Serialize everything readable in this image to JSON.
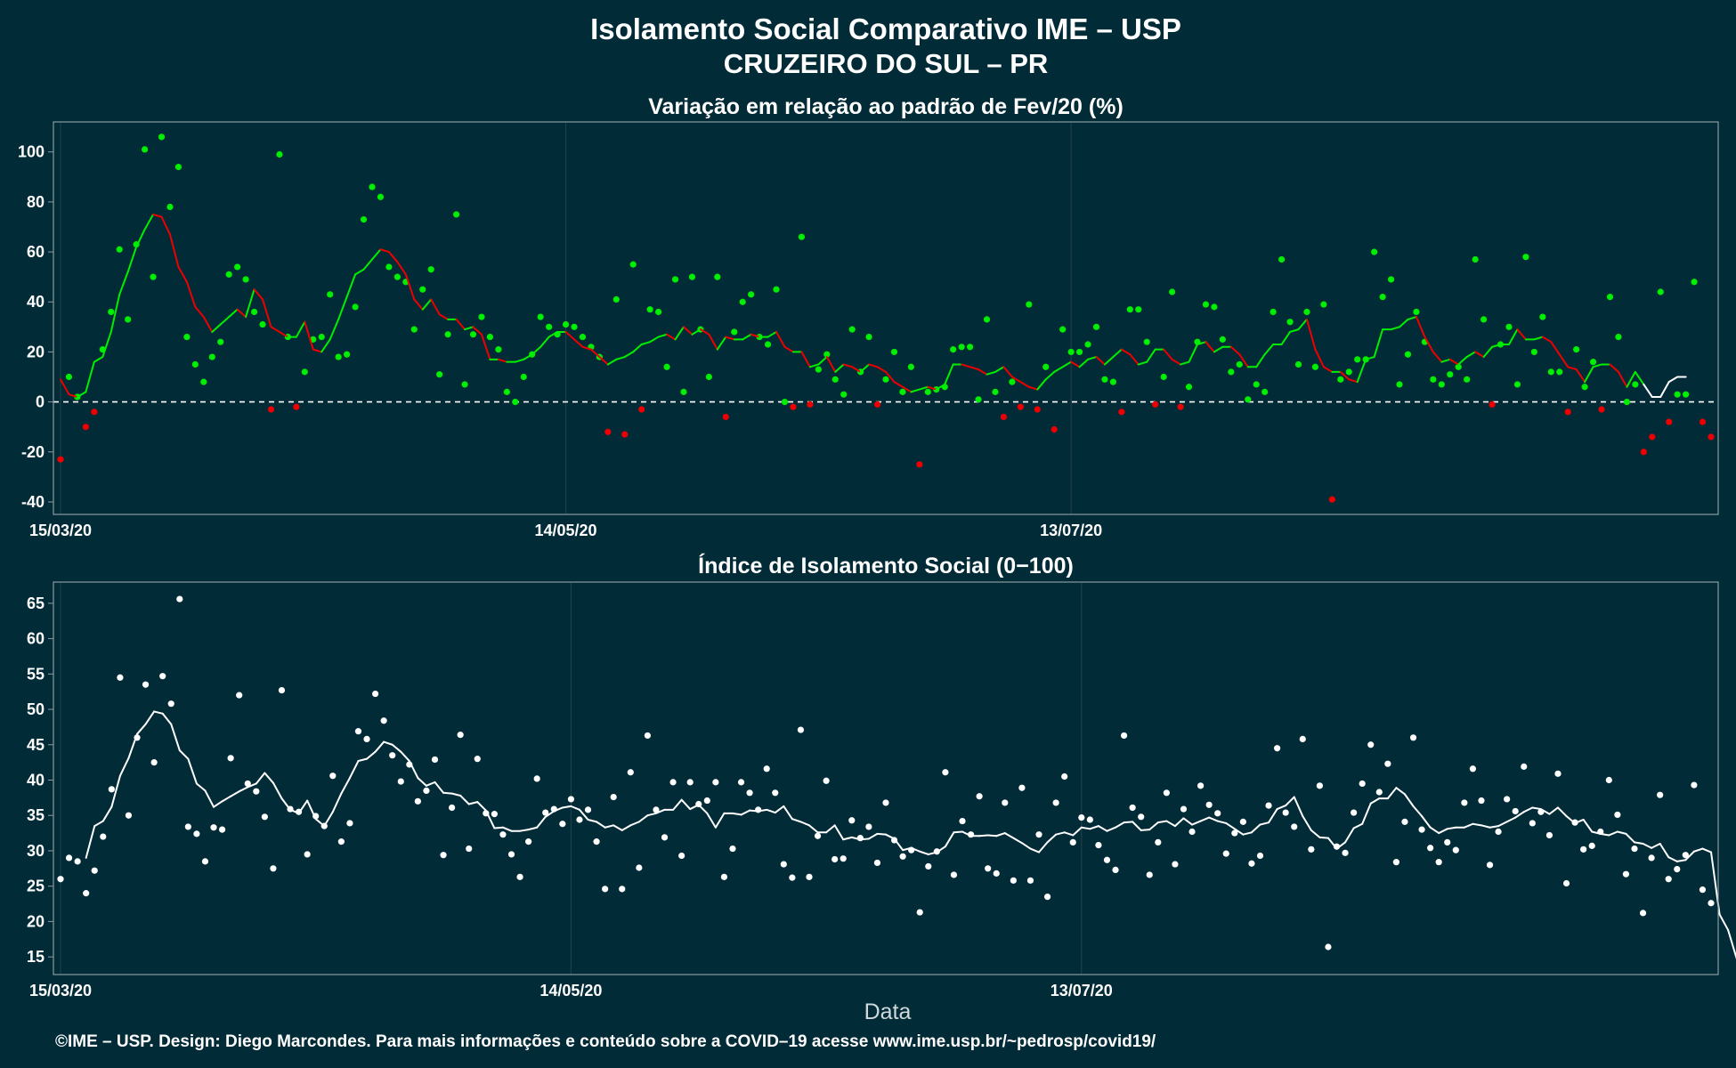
{
  "title": "Isolamento Social Comparativo IME – USP",
  "subtitle": "CRUZEIRO DO SUL – PR",
  "xlabel": "Data",
  "footer": "©IME – USP. Design: Diego Marcondes. Para mais informações e conteúdo sobre a COVID–19 acesse www.ime.usp.br/~pedrosp/covid19/",
  "colors": {
    "background": "#022b38",
    "positive": "#00ee00",
    "negative": "#ee0000",
    "neutral": "#ffffff",
    "grid": "#24434c",
    "frame": "#8a9aa0"
  },
  "chart_data": [
    {
      "type": "scatter",
      "title": "Variação em relação ao padrão de Fev/20 (%)",
      "x_start": "2020-03-15",
      "x_ticks": [
        "15/03/20",
        "14/05/20",
        "13/07/20"
      ],
      "y_ticks": [
        -40,
        -20,
        0,
        20,
        40,
        60,
        80,
        100
      ],
      "ylim": [
        -45,
        112
      ],
      "reference_line": 0,
      "series": [
        {
          "values": [
            -23,
            10,
            2,
            -10,
            -4,
            21,
            36,
            61,
            33,
            63,
            101,
            50,
            106,
            78,
            94,
            26,
            15,
            8,
            18,
            24,
            51,
            54,
            49,
            36,
            31,
            -3,
            99,
            26,
            -2,
            12,
            25,
            26,
            43,
            18,
            19,
            38,
            73,
            86,
            82,
            54,
            50,
            48,
            29,
            45,
            53,
            11,
            27,
            75,
            7,
            27,
            34,
            26,
            21,
            4,
            0,
            10,
            19,
            34,
            30,
            27,
            31,
            30,
            26,
            22,
            18,
            -12,
            41,
            -13,
            55,
            -3,
            37,
            36,
            14,
            49,
            4,
            50,
            29,
            10,
            50,
            -6,
            28,
            40,
            43,
            26,
            23,
            45,
            0,
            -2,
            66,
            -1,
            13,
            19,
            9,
            3,
            29,
            12,
            26,
            -1,
            9,
            20,
            4,
            14,
            -25,
            4,
            5,
            6,
            21,
            22,
            22,
            1,
            33,
            4,
            -6,
            8,
            -2,
            39,
            -3,
            14,
            -11,
            29,
            20,
            20,
            23,
            30,
            9,
            8,
            -4,
            37,
            37,
            24,
            -1,
            10,
            44,
            -2,
            6,
            24,
            39,
            38,
            25,
            12,
            15,
            1,
            7,
            4,
            36,
            57,
            32,
            15,
            36,
            14,
            39,
            -39,
            9,
            12,
            17,
            17,
            60,
            42,
            49,
            7,
            19,
            36,
            24,
            9,
            7,
            11,
            14,
            9,
            57,
            33,
            -1,
            23,
            30,
            7,
            58,
            20,
            34,
            12,
            12,
            -4,
            21,
            6,
            16,
            -3,
            42,
            26,
            0,
            7,
            -20,
            -14,
            44,
            -8,
            3,
            3,
            48,
            -8,
            -14
          ]
        },
        {
          "values": [
            9,
            3,
            2,
            4,
            16,
            18,
            28,
            43,
            52,
            62,
            69,
            75,
            74,
            67,
            54,
            48,
            38,
            34,
            28,
            31,
            34,
            37,
            34,
            45,
            41,
            30,
            28,
            26,
            26,
            32,
            21,
            20,
            25,
            33,
            42,
            51,
            53,
            57,
            61,
            60,
            56,
            51,
            41,
            37,
            41,
            35,
            33,
            33,
            29,
            30,
            27,
            17,
            17,
            16,
            16,
            17,
            19,
            22,
            26,
            28,
            28,
            25,
            22,
            21,
            18,
            15,
            17,
            18,
            20,
            23,
            24,
            26,
            27,
            25,
            30,
            27,
            29,
            27,
            21,
            26,
            25,
            25,
            27,
            26,
            26,
            28,
            22,
            20,
            20,
            14,
            15,
            18,
            12,
            15,
            14,
            12,
            15,
            14,
            12,
            8,
            6,
            4,
            5,
            6,
            5,
            7,
            15,
            15,
            14,
            13,
            11,
            12,
            14,
            10,
            8,
            6,
            5,
            9,
            12,
            14,
            16,
            14,
            17,
            18,
            15,
            18,
            21,
            19,
            15,
            16,
            21,
            21,
            17,
            15,
            16,
            23,
            24,
            20,
            22,
            22,
            19,
            14,
            14,
            19,
            23,
            23,
            28,
            29,
            33,
            21,
            14,
            12,
            12,
            9,
            8,
            17,
            18,
            29,
            29,
            30,
            33,
            34,
            26,
            20,
            16,
            17,
            15,
            18,
            20,
            18,
            22,
            23,
            23,
            29,
            25,
            25,
            26,
            24,
            19,
            14,
            13,
            8,
            14,
            15,
            15,
            12,
            6,
            12,
            7,
            2,
            2,
            8,
            10,
            10
          ]
        }
      ]
    },
    {
      "type": "scatter",
      "title": "Índice de Isolamento Social (0−100)",
      "x_start": "2020-03-15",
      "x_ticks": [
        "15/03/20",
        "14/05/20",
        "13/07/20"
      ],
      "y_ticks": [
        15,
        20,
        25,
        30,
        35,
        40,
        45,
        50,
        55,
        60,
        65
      ],
      "ylim": [
        12.5,
        68
      ],
      "series": [
        {
          "values": [
            26,
            29,
            28.5,
            24,
            27.2,
            32,
            38.7,
            54.5,
            35,
            46,
            53.5,
            42.5,
            54.7,
            50.8,
            65.6,
            33.4,
            32.4,
            28.5,
            33.3,
            33,
            43.1,
            52,
            39.5,
            38.4,
            34.8,
            27.5,
            52.7,
            35.9,
            35.5,
            29.5,
            34.9,
            33.5,
            40.6,
            31.3,
            33.9,
            46.9,
            45.8,
            52.2,
            48.4,
            43.5,
            39.8,
            42.2,
            37,
            38.5,
            42.9,
            29.4,
            36.1,
            46.4,
            30.3,
            43,
            35.3,
            35.2,
            32.3,
            29.5,
            26.3,
            31.3,
            40.2,
            35.4,
            35.9,
            33.8,
            37.3,
            34.4,
            35.8,
            31.3,
            24.6,
            37.6,
            24.6,
            41.1,
            27.6,
            46.3,
            35.8,
            31.9,
            39.7,
            29.3,
            39.7,
            36.6,
            37.1,
            39.7,
            26.3,
            30.3,
            39.7,
            38.2,
            35.8,
            41.6,
            38.2,
            28.1,
            26.2,
            47.1,
            26.3,
            32.1,
            39.9,
            28.8,
            28.9,
            34.3,
            31.8,
            33.4,
            28.3,
            36.8,
            31.5,
            29.2,
            30.1,
            21.3,
            27.8,
            29.9,
            41.1,
            26.6,
            34.2,
            32.3,
            37.7,
            27.5,
            26.8,
            36.8,
            25.8,
            38.9,
            25.8,
            32.3,
            23.5,
            36.8,
            40.5,
            31.2,
            34.7,
            34.4,
            30.8,
            28.7,
            27.3,
            46.3,
            36.1,
            34.8,
            26.6,
            31.2,
            38.2,
            28.1,
            35.9,
            32.7,
            39.2,
            36.5,
            35.3,
            29.6,
            32.5,
            34.1,
            28.2,
            29.3,
            36.4,
            44.5,
            35.4,
            33.4,
            45.8,
            30.2,
            39.2,
            16.4,
            30.6,
            29.7,
            35.4,
            39.5,
            45,
            38.3,
            42.3,
            28.4,
            34.1,
            46,
            33,
            30.4,
            28.4,
            31.2,
            30.1,
            36.8,
            41.6,
            37.1,
            28,
            32.7,
            37.3,
            35.6,
            41.9,
            33.9,
            35.5,
            32.2,
            40.9,
            25.4,
            34,
            30.2,
            30.7,
            32.7,
            40,
            35.1,
            26.7,
            30.3,
            21.2,
            29,
            37.9,
            26,
            27.4,
            29.4,
            39.3,
            24.5,
            22.6
          ]
        },
        {
          "values": [
            null,
            null,
            null,
            29,
            33.5,
            34.2,
            36.2,
            40.6,
            43.1,
            46.5,
            47.9,
            49.7,
            49.4,
            47.9,
            44.2,
            43,
            39.5,
            38.5,
            36.2,
            37,
            37.7,
            38.4,
            39,
            39.5,
            41,
            39.6,
            37.4,
            35.8,
            35.3,
            37.1,
            34.5,
            33.5,
            35.5,
            38.1,
            40.3,
            42.7,
            43,
            44,
            45.4,
            45,
            44,
            42.7,
            40.3,
            39.2,
            39.7,
            38.2,
            38.1,
            37.8,
            36.6,
            36.9,
            35.7,
            33.2,
            33.3,
            32.8,
            32.8,
            33,
            33.3,
            34.8,
            35.6,
            36.1,
            36.3,
            35.8,
            34.4,
            34.1,
            33.3,
            33.6,
            32.9,
            33.6,
            34.1,
            35,
            35.3,
            35.8,
            35.8,
            37.2,
            35.9,
            36.5,
            35.3,
            33.3,
            35.3,
            35.3,
            35.1,
            35.7,
            35.6,
            35.8,
            35.4,
            36.3,
            34.5,
            34.1,
            33.6,
            32.6,
            32.6,
            33.6,
            31.6,
            31.9,
            31.6,
            31.7,
            32.4,
            32.3,
            31.7,
            30.1,
            30.4,
            29.9,
            29.5,
            29.8,
            30.6,
            32.6,
            32.7,
            32.1,
            32.1,
            32.2,
            32.1,
            32.5,
            31.8,
            31.1,
            30.3,
            29.8,
            31.2,
            32.3,
            32.6,
            32.2,
            33.3,
            33.1,
            33.5,
            32.8,
            33.3,
            34,
            34.1,
            32.9,
            33,
            34,
            34.2,
            33.5,
            34.6,
            33.7,
            34.2,
            34.7,
            34.2,
            33.9,
            33.1,
            32.3,
            32.6,
            33.7,
            34,
            35.9,
            36.4,
            37.6,
            34.9,
            32.9,
            31.9,
            31.8,
            30.3,
            31.2,
            33.2,
            33.8,
            36.7,
            37.4,
            37.4,
            38.9,
            38,
            36.3,
            34.9,
            33.3,
            32.5,
            33.1,
            33.3,
            33.3,
            33.8,
            33.6,
            33.3,
            33.5,
            34.1,
            34.7,
            35.5,
            36.1,
            35.9,
            35.2,
            36.1,
            34.9,
            33.9,
            34.4,
            32.7,
            32.4,
            32.2,
            32.7,
            32.4,
            31.2,
            31,
            30.4,
            31,
            29.1,
            28.5,
            28.7,
            29.9,
            30.3,
            29.8,
            21,
            18.8,
            14.8
          ]
        }
      ]
    }
  ]
}
